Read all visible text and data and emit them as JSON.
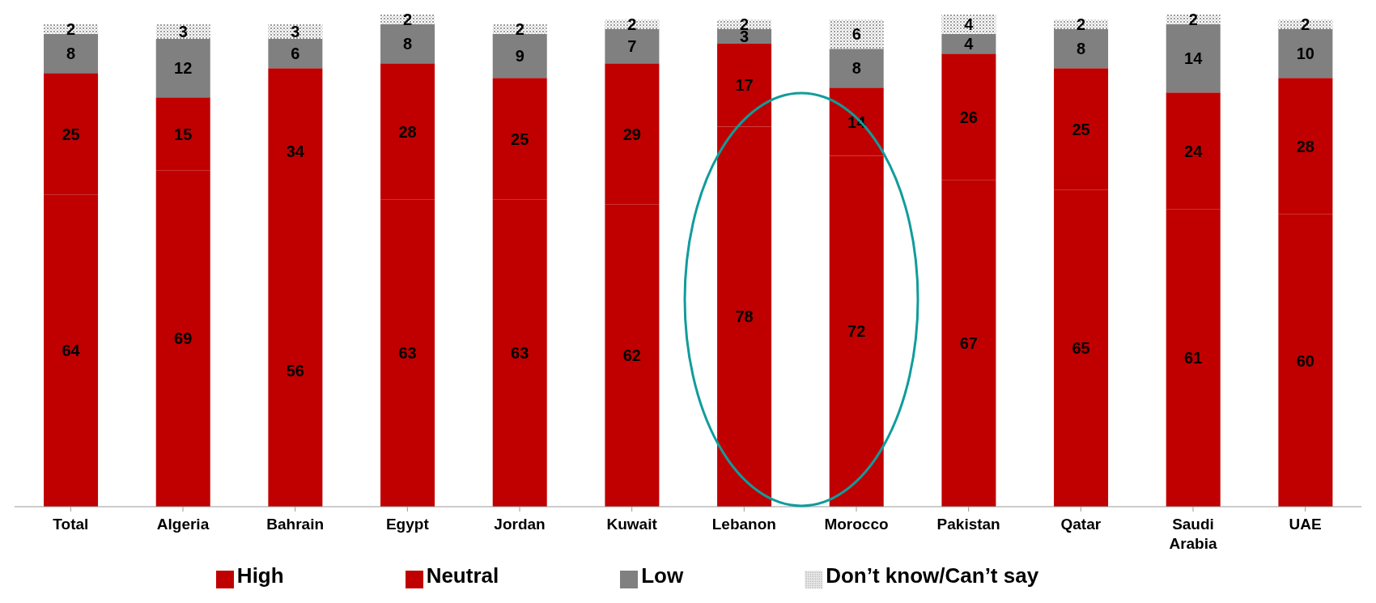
{
  "chart_data": {
    "type": "bar",
    "stacked": true,
    "data_labels": true,
    "legend": "bottom",
    "categories": [
      "Total",
      "Algeria",
      "Bahrain",
      "Egypt",
      "Jordan",
      "Kuwait",
      "Lebanon",
      "Morocco",
      "Pakistan",
      "Qatar",
      "Saudi Arabia",
      "UAE"
    ],
    "series": [
      {
        "name": "High",
        "color": "#c00000",
        "values": [
          64,
          69,
          56,
          63,
          63,
          62,
          78,
          72,
          67,
          65,
          61,
          60
        ]
      },
      {
        "name": "Neutral",
        "color": "#c00000",
        "values": [
          25,
          15,
          34,
          28,
          25,
          29,
          17,
          14,
          26,
          25,
          24,
          28
        ]
      },
      {
        "name": "Low",
        "color": "#808080",
        "values": [
          8,
          12,
          6,
          8,
          9,
          7,
          3,
          8,
          4,
          8,
          14,
          10
        ]
      },
      {
        "name": "Don’t know/Can’t say",
        "color": "#d9d9d9",
        "values": [
          2,
          3,
          3,
          2,
          2,
          2,
          2,
          6,
          4,
          2,
          2,
          2
        ]
      }
    ]
  }
}
